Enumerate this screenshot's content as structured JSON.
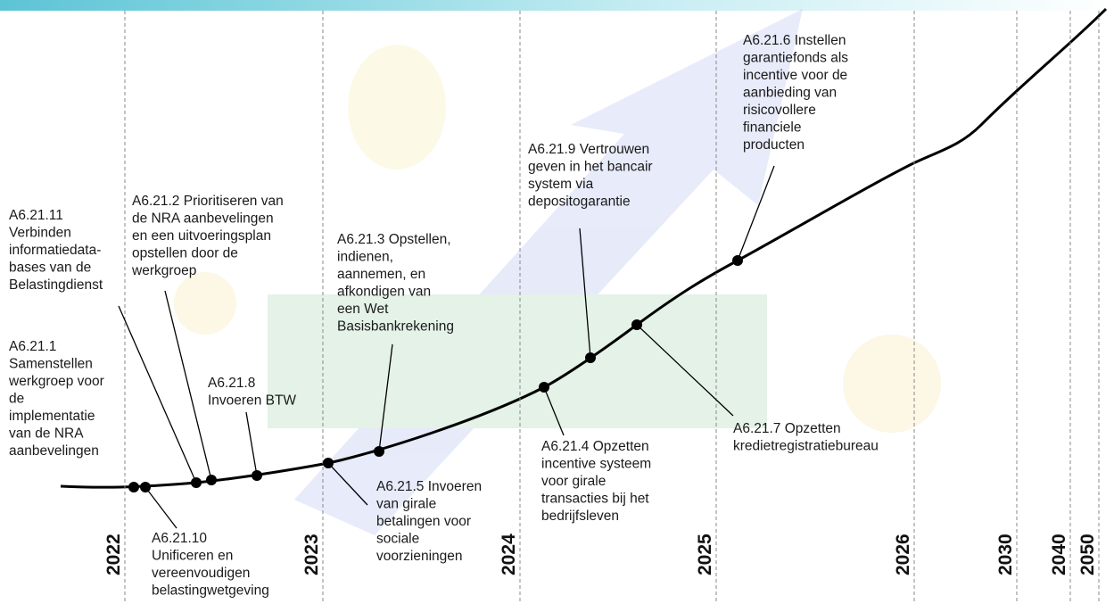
{
  "years": [
    "2022",
    "2023",
    "2024",
    "2025",
    "2026",
    "2030",
    "2040",
    "2050"
  ],
  "milestones": [
    {
      "lines": [
        "A6.21.11",
        "Verbinden",
        "informatiedata-",
        "bases van de",
        "Belastingdienst"
      ]
    },
    {
      "lines": [
        "A6.21.1",
        "Samenstellen",
        "werkgroep voor",
        "de",
        "implementatie",
        "van de NRA",
        "aanbevelingen"
      ]
    },
    {
      "lines": [
        "A6.21.10",
        "Unificeren en",
        "vereenvoudigen",
        "belastingwetgeving"
      ]
    },
    {
      "lines": [
        "A6.21.2 Prioritiseren van",
        "de NRA aanbevelingen",
        "en een uitvoeringsplan",
        "opstellen door de",
        "werkgroep"
      ]
    },
    {
      "lines": [
        "A6.21.8",
        "Invoeren BTW"
      ]
    },
    {
      "lines": [
        "A6.21.3 Opstellen,",
        "indienen,",
        "aannemen, en",
        "afkondigen van",
        "een Wet",
        "Basisbankrekening"
      ]
    },
    {
      "lines": [
        "A6.21.5 Invoeren",
        "van girale",
        "betalingen voor",
        "sociale",
        "voorzieningen"
      ]
    },
    {
      "lines": [
        "A6.21.4 Opzetten",
        "incentive systeem",
        "voor girale",
        "transacties bij het",
        "bedrijfsleven"
      ]
    },
    {
      "lines": [
        "A6.21.9 Vertrouwen",
        "geven in het bancair",
        "system via",
        "depositogarantie"
      ]
    },
    {
      "lines": [
        "A6.21.7 Opzetten",
        "kredietregistratiebureau"
      ]
    },
    {
      "lines": [
        "A6.21.6 Instellen",
        "garantiefonds als",
        "incentive voor de",
        "aanbieding van",
        "risicovollere",
        "financiele",
        "producten"
      ]
    }
  ]
}
